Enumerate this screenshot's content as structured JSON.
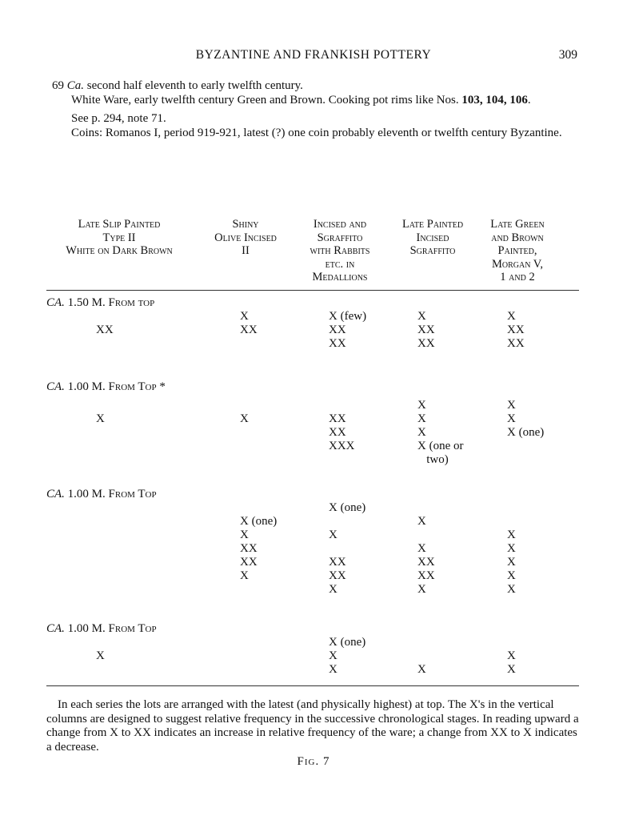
{
  "running_head": "BYZANTINE AND FRANKISH POTTERY",
  "page_number": "309",
  "entry": {
    "number": "69",
    "date_italic": "Ca.",
    "date_rest": " second half eleventh to early twelfth century.",
    "wares_text": "White Ware, early twelfth century Green and Brown. Cooking pot rims like Nos. ",
    "wares_bold": "103, 104, 106",
    "wares_end": ".",
    "see": "See p. 294, note 71.",
    "coins": "Coins: Romanos I, period 919-921, latest (?) one coin probably eleventh or twelfth century Byzantine."
  },
  "columns": [
    "Late Slip Painted\nType II\nWhite on Dark Brown",
    "Shiny\nOlive Incised\nII",
    "Incised and\nSgraffito\nwith Rabbits\netc. in\nMedallions",
    "Late Painted\nIncised\nSgraffito",
    "Late Green\nand Brown\nPainted,\nMorgan V,\n1 and 2"
  ],
  "sections": [
    {
      "label_italic": "CA.",
      "label_rest": " 1.50 M. From top",
      "rows": [
        [
          "",
          "X",
          "X (few)",
          "X",
          "X"
        ],
        [
          "XX",
          "XX",
          "XX",
          "XX",
          "XX"
        ],
        [
          "",
          "",
          "XX",
          "XX",
          "XX"
        ]
      ]
    },
    {
      "label_italic": "CA.",
      "label_rest": " 1.00 M. From Top *",
      "rows": [
        [
          "",
          "",
          "",
          "X",
          "X"
        ],
        [
          "X",
          "X",
          "XX",
          "X",
          "X"
        ],
        [
          "",
          "",
          "XX",
          "X",
          "X (one)"
        ],
        [
          "",
          "",
          "XXX",
          "X (one or",
          ""
        ],
        [
          "",
          "",
          "",
          "   two)",
          ""
        ]
      ]
    },
    {
      "label_italic": "CA.",
      "label_rest": " 1.00 M. From Top",
      "rows": [
        [
          "",
          "",
          "X (one)",
          "",
          ""
        ],
        [
          "",
          "X (one)",
          "",
          "X",
          ""
        ],
        [
          "",
          "X",
          "X",
          "",
          "X"
        ],
        [
          "",
          "XX",
          "",
          "X",
          "X"
        ],
        [
          "",
          "XX",
          "XX",
          "XX",
          "X"
        ],
        [
          "",
          "X",
          "XX",
          "XX",
          "X"
        ],
        [
          "",
          "",
          "X",
          "X",
          "X"
        ]
      ]
    },
    {
      "label_italic": "CA.",
      "label_rest": " 1.00 M. From Top",
      "rows": [
        [
          "",
          "",
          "X (one)",
          "",
          ""
        ],
        [
          "X",
          "",
          "X",
          "",
          "X"
        ],
        [
          "",
          "",
          "X",
          "X",
          "X"
        ]
      ]
    }
  ],
  "note": "In each series the lots are arranged with the latest (and physically highest) at top. The X's in the vertical columns are designed to suggest relative frequency in the successive chronological stages. In reading upward a change from X to XX indicates an increase in relative frequency of the ware; a change from XX to X indicates a decrease.",
  "figure_label": "Fig. 7"
}
